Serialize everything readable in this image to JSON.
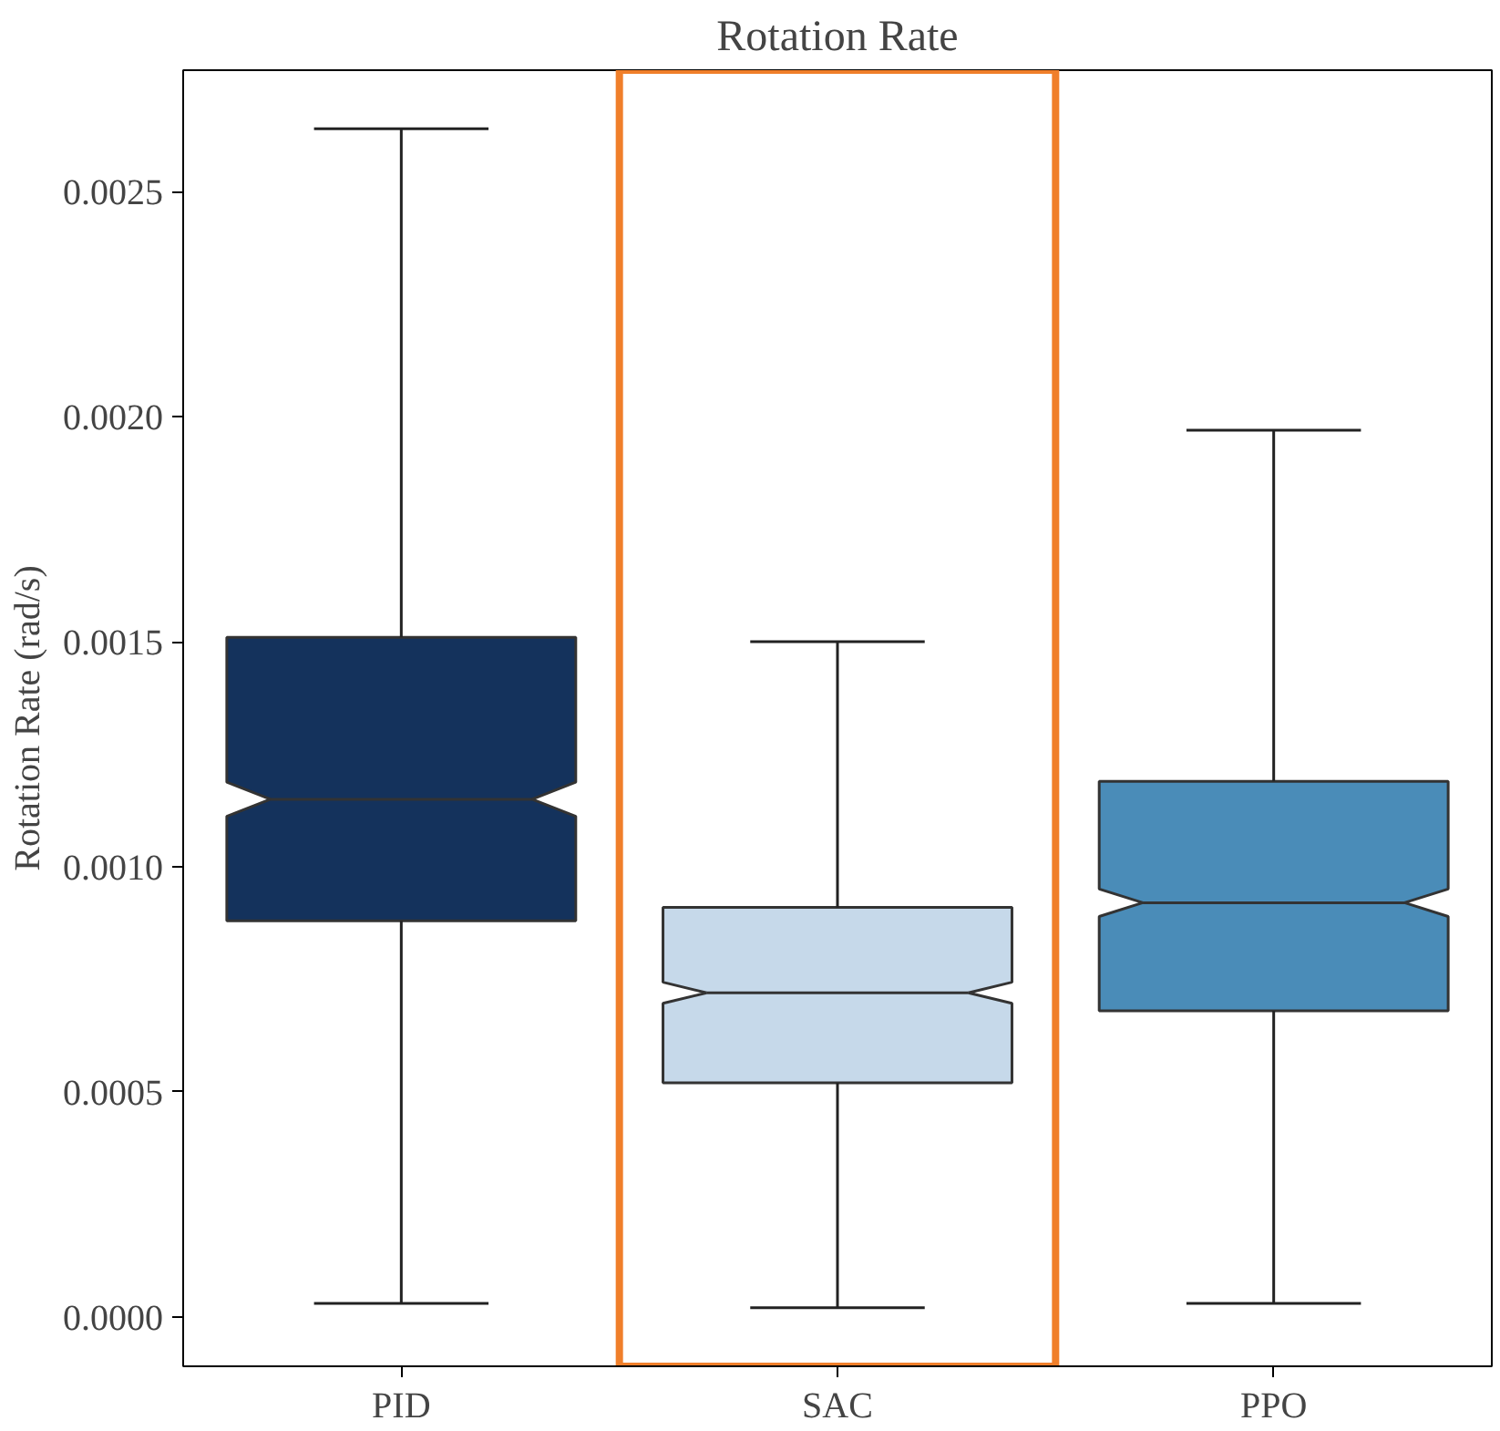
{
  "chart_data": {
    "type": "box",
    "title": "Rotation Rate",
    "ylabel": "Rotation Rate (rad/s)",
    "categories": [
      "PID",
      "SAC",
      "PPO"
    ],
    "colors": [
      "#14325c",
      "#c6d9ea",
      "#4a8cb8"
    ],
    "boxes": [
      {
        "low": 3e-05,
        "q1": 0.00088,
        "median": 0.00115,
        "q3": 0.00151,
        "high": 0.00264
      },
      {
        "low": 2e-05,
        "q1": 0.00052,
        "median": 0.00072,
        "q3": 0.00091,
        "high": 0.0015
      },
      {
        "low": 3e-05,
        "q1": 0.00068,
        "median": 0.00092,
        "q3": 0.00119,
        "high": 0.00197
      }
    ],
    "ylim": [
      -0.00011,
      0.00277
    ],
    "yticks": [
      {
        "value": 0,
        "label": "0.0000"
      },
      {
        "value": 0.0005,
        "label": "0.0005"
      },
      {
        "value": 0.001,
        "label": "0.0010"
      },
      {
        "value": 0.0015,
        "label": "0.0015"
      },
      {
        "value": 0.002,
        "label": "0.0020"
      },
      {
        "value": 0.0025,
        "label": "0.0025"
      }
    ],
    "grid": false
  }
}
